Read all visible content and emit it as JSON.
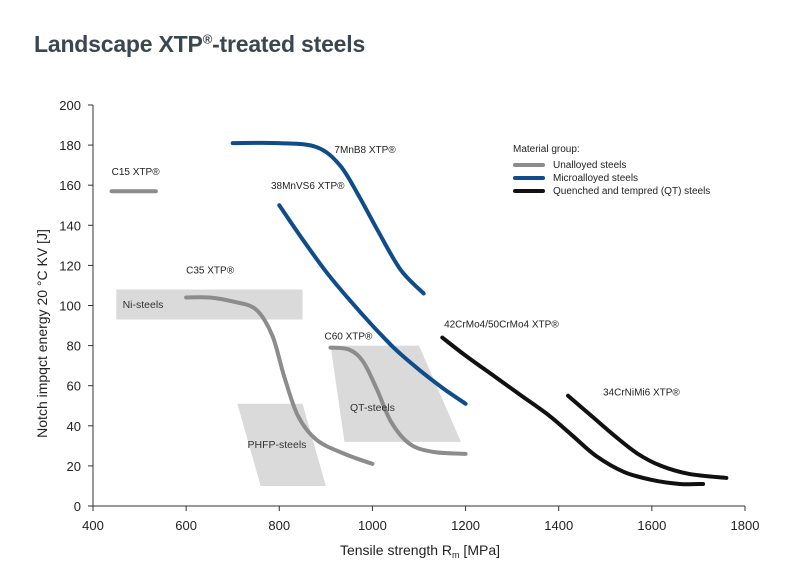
{
  "title": {
    "main": "Landscape XTP",
    "reg": "®",
    "rest": "-treated steels"
  },
  "chart_data": {
    "type": "line",
    "xlabel": "Tensile strength R",
    "xlabel_sub": "m",
    "xlabel_unit": " [MPa]",
    "ylabel": "Notch impqct energy 20 °C KV [J]",
    "xlim": [
      400,
      1800
    ],
    "ylim": [
      0,
      200
    ],
    "x_ticks": [
      400,
      600,
      800,
      1000,
      1200,
      1400,
      1600,
      1800
    ],
    "y_ticks": [
      0,
      20,
      40,
      60,
      80,
      100,
      120,
      140,
      160,
      180,
      200
    ],
    "grid": false,
    "legend": {
      "title": "Material group:",
      "placement": "top-right",
      "entries": [
        {
          "label": "Unalloyed steels",
          "color": "#8c8c8c"
        },
        {
          "label": "Microalloyed steels",
          "color": "#0f4c8a"
        },
        {
          "label": "Quenched and tempred (QT) steels",
          "color": "#111111"
        }
      ]
    },
    "regions": [
      {
        "label": "Ni-steels",
        "points": [
          [
            450,
            108
          ],
          [
            850,
            108
          ],
          [
            850,
            93
          ],
          [
            450,
            93
          ]
        ]
      },
      {
        "label": "QT-steels",
        "points": [
          [
            910,
            80
          ],
          [
            1100,
            80
          ],
          [
            1190,
            32
          ],
          [
            940,
            32
          ]
        ]
      },
      {
        "label": "PHFP-steels",
        "points": [
          [
            710,
            51
          ],
          [
            850,
            51
          ],
          [
            900,
            10
          ],
          [
            760,
            10
          ]
        ]
      }
    ],
    "series": [
      {
        "name": "C15 XTP®",
        "group": "Unalloyed steels",
        "color": "#8c8c8c",
        "points": [
          [
            440,
            157
          ],
          [
            535,
            157
          ]
        ]
      },
      {
        "name": "C35 XTP®",
        "group": "Unalloyed steels",
        "color": "#8c8c8c",
        "points": [
          [
            600,
            104
          ],
          [
            650,
            104
          ],
          [
            700,
            102
          ],
          [
            750,
            98
          ],
          [
            785,
            85
          ],
          [
            810,
            65
          ],
          [
            840,
            45
          ],
          [
            880,
            33
          ],
          [
            940,
            26
          ],
          [
            1000,
            21
          ]
        ]
      },
      {
        "name": "C60 XTP®",
        "group": "Unalloyed steels",
        "color": "#8c8c8c",
        "points": [
          [
            910,
            79
          ],
          [
            950,
            78
          ],
          [
            980,
            72
          ],
          [
            1010,
            58
          ],
          [
            1040,
            42
          ],
          [
            1080,
            31
          ],
          [
            1130,
            27
          ],
          [
            1200,
            26
          ]
        ]
      },
      {
        "name": "7MnB8 XTP®",
        "group": "Microalloyed steels",
        "color": "#0f4c8a",
        "points": [
          [
            700,
            181
          ],
          [
            800,
            181
          ],
          [
            880,
            179
          ],
          [
            930,
            170
          ],
          [
            970,
            155
          ],
          [
            1010,
            138
          ],
          [
            1060,
            118
          ],
          [
            1110,
            106
          ]
        ]
      },
      {
        "name": "38MnVS6 XTP®",
        "group": "Microalloyed steels",
        "color": "#0f4c8a",
        "points": [
          [
            800,
            150
          ],
          [
            850,
            133
          ],
          [
            900,
            117
          ],
          [
            950,
            103
          ],
          [
            1000,
            90
          ],
          [
            1050,
            78
          ],
          [
            1100,
            68
          ],
          [
            1150,
            59
          ],
          [
            1200,
            51
          ]
        ]
      },
      {
        "name": "42CrMo4/50CrMo4 XTP®",
        "group": "Quenched and tempred (QT) steels",
        "color": "#111111",
        "points": [
          [
            1150,
            84
          ],
          [
            1200,
            75
          ],
          [
            1260,
            65
          ],
          [
            1320,
            55
          ],
          [
            1380,
            45
          ],
          [
            1430,
            35
          ],
          [
            1480,
            25
          ],
          [
            1540,
            17
          ],
          [
            1600,
            13
          ],
          [
            1660,
            11
          ],
          [
            1710,
            11
          ]
        ]
      },
      {
        "name": "34CrNiMi6 XTP®",
        "group": "Quenched and tempred (QT) steels",
        "color": "#111111",
        "points": [
          [
            1420,
            55
          ],
          [
            1470,
            45
          ],
          [
            1520,
            35
          ],
          [
            1570,
            26
          ],
          [
            1620,
            20
          ],
          [
            1680,
            16
          ],
          [
            1760,
            14
          ]
        ]
      }
    ]
  }
}
